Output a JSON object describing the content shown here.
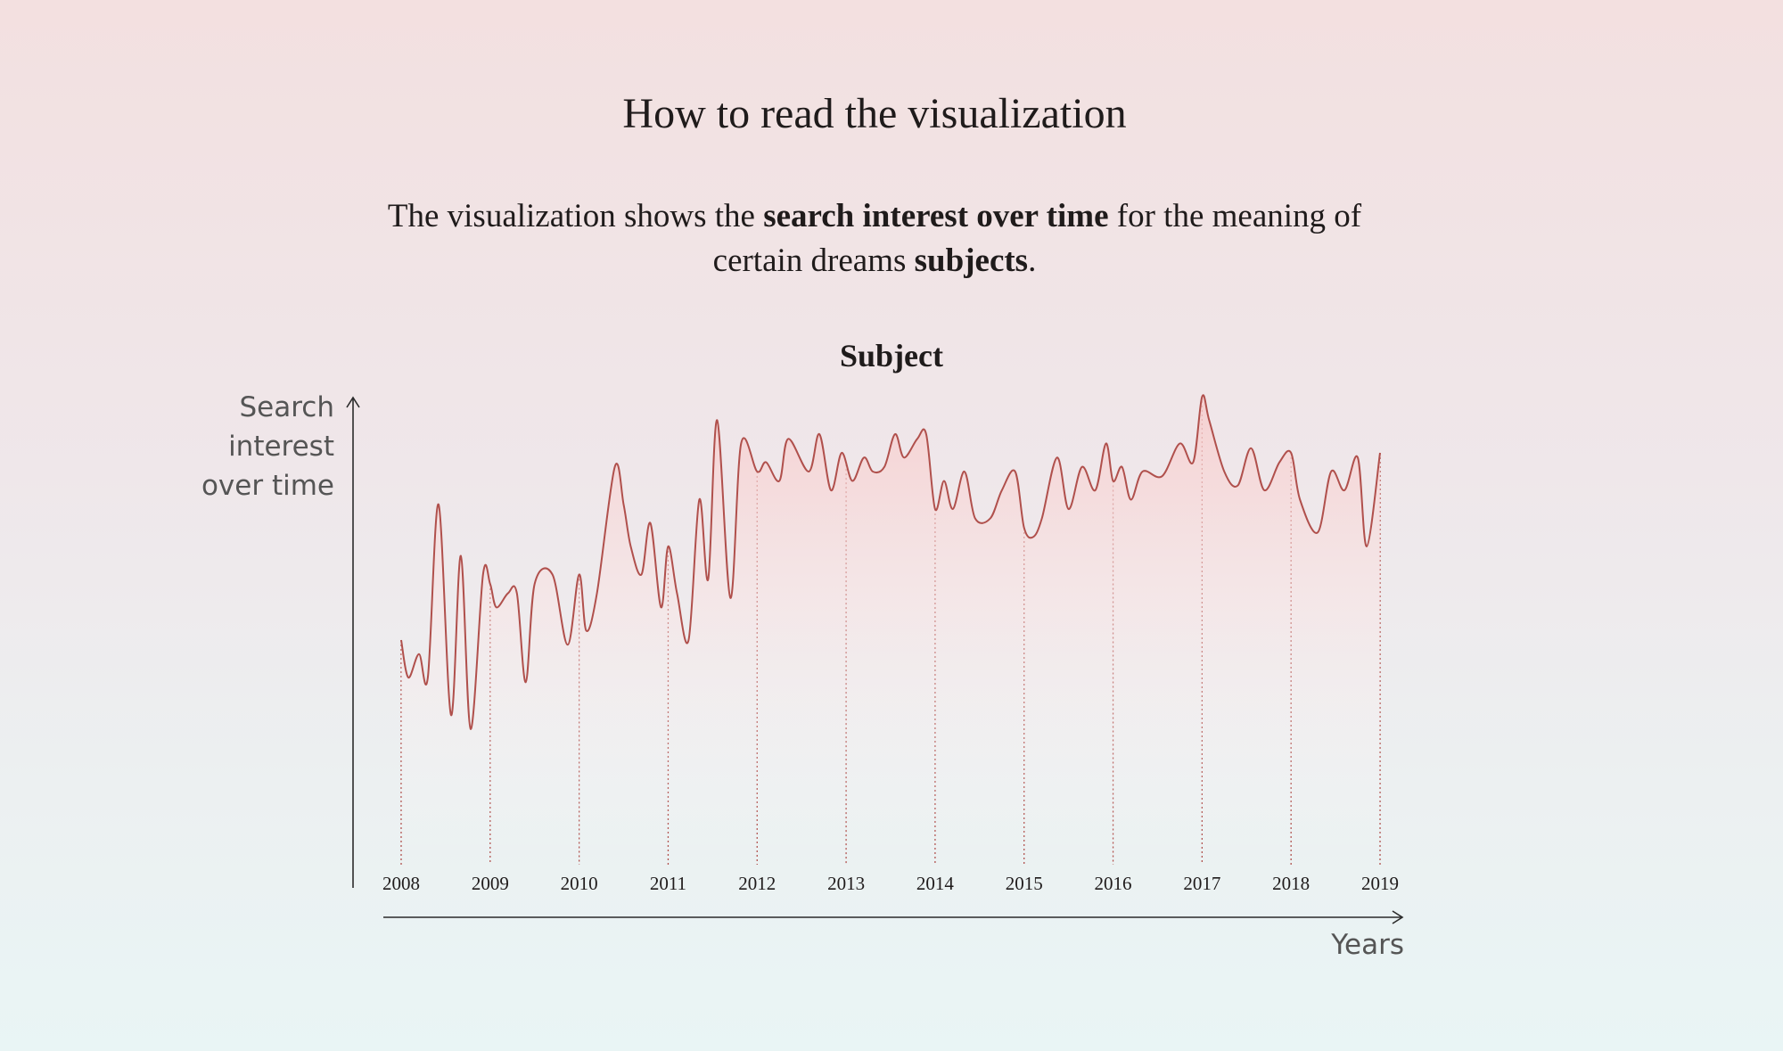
{
  "header": {
    "title": "How to read the visualization",
    "desc_part1": "The visualization shows the ",
    "desc_bold1": "search interest over time",
    "desc_part2": " for the meaning of certain dreams ",
    "desc_bold2": "subjects",
    "desc_part3": "."
  },
  "colors": {
    "line": "#b0504c",
    "fill_top": "#f6cccc",
    "axis": "#2b2b2b"
  },
  "chart_data": {
    "type": "area",
    "title": "Subject",
    "ylabel": "Search interest over time",
    "xlabel": "Years",
    "xlim": [
      2008,
      2019
    ],
    "ylim": [
      0,
      100
    ],
    "grid": false,
    "x_ticks": [
      "2008",
      "2009",
      "2010",
      "2011",
      "2012",
      "2013",
      "2014",
      "2015",
      "2016",
      "2017",
      "2018",
      "2019"
    ],
    "series": [
      {
        "x": [
          2008.0,
          2008.08,
          2008.2,
          2008.3,
          2008.42,
          2008.56,
          2008.67,
          2008.78,
          2008.92,
          2009.0,
          2009.07,
          2009.2,
          2009.3,
          2009.4,
          2009.5,
          2009.7,
          2009.87,
          2010.0,
          2010.08,
          2010.2,
          2010.4,
          2010.5,
          2010.58,
          2010.7,
          2010.8,
          2010.92,
          2011.0,
          2011.1,
          2011.23,
          2011.35,
          2011.45,
          2011.55,
          2011.7,
          2011.82,
          2012.0,
          2012.1,
          2012.25,
          2012.35,
          2012.58,
          2012.7,
          2012.83,
          2012.95,
          2013.07,
          2013.2,
          2013.3,
          2013.43,
          2013.55,
          2013.65,
          2013.8,
          2013.9,
          2014.0,
          2014.1,
          2014.2,
          2014.33,
          2014.45,
          2014.62,
          2014.75,
          2014.9,
          2015.0,
          2015.1,
          2015.2,
          2015.37,
          2015.5,
          2015.65,
          2015.8,
          2015.92,
          2016.0,
          2016.1,
          2016.2,
          2016.33,
          2016.55,
          2016.75,
          2016.9,
          2017.0,
          2017.08,
          2017.25,
          2017.4,
          2017.55,
          2017.7,
          2017.87,
          2018.0,
          2018.1,
          2018.3,
          2018.45,
          2018.6,
          2018.75,
          2018.85,
          2019.0
        ],
        "values": [
          48,
          40,
          45,
          40,
          77,
          32,
          66,
          29,
          62,
          60,
          55,
          58,
          58,
          39,
          60,
          62,
          47,
          62,
          50,
          58,
          85,
          77,
          68,
          62,
          73,
          55,
          68,
          58,
          48,
          78,
          61,
          95,
          57,
          90,
          84,
          86,
          82,
          91,
          84,
          92,
          80,
          88,
          82,
          87,
          84,
          85,
          92,
          87,
          91,
          92,
          76,
          82,
          76,
          84,
          74,
          74,
          80,
          84,
          72,
          70,
          74,
          87,
          76,
          85,
          80,
          90,
          82,
          85,
          78,
          84,
          83,
          90,
          86,
          100,
          95,
          84,
          81,
          89,
          80,
          86,
          88,
          78,
          71,
          84,
          80,
          87,
          68,
          88
        ]
      }
    ]
  },
  "labels": {
    "y_axis": [
      "Search",
      "interest",
      "over time"
    ],
    "x_axis": "Years"
  }
}
